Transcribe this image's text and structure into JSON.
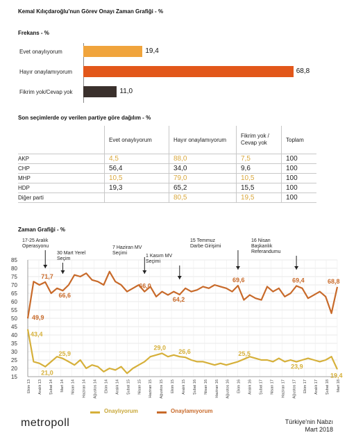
{
  "chart_data": [
    {
      "type": "bar",
      "title": "Kemal Kılıçdaroğlu'nun Görev Onayı Zaman Grafiği - %",
      "subtitle": "Frekans - %",
      "categories": [
        "Evet onaylıyorum",
        "Hayır onaylamıyorum",
        "Fikrim yok/Cevap yok"
      ],
      "values": [
        19.4,
        68.8,
        11.0
      ],
      "value_labels": [
        "19,4",
        "68,8",
        "11,0"
      ],
      "colors": [
        "#f0a43c",
        "#e2571a",
        "#3a302c"
      ],
      "xlim": [
        0,
        70
      ]
    },
    {
      "type": "table",
      "title": "Son seçimlerde oy verilen partiye göre dağılım - %",
      "columns": [
        "Evet onaylıyorum",
        "Hayır onaylamıyorum",
        "Fikrim yok / Cevap yok",
        "Toplam"
      ],
      "rows": [
        {
          "label": "AKP",
          "cells": [
            "4,5",
            "88,0",
            "7,5",
            "100"
          ]
        },
        {
          "label": "CHP",
          "cells": [
            "56,4",
            "34,0",
            "9,6",
            "100"
          ]
        },
        {
          "label": "MHP",
          "cells": [
            "10,5",
            "79,0",
            "10,5",
            "100"
          ]
        },
        {
          "label": "HDP",
          "cells": [
            "19,3",
            "65,2",
            "15,5",
            "100"
          ]
        },
        {
          "label": "Diğer parti",
          "cells": [
            "",
            "80,5",
            "19,5",
            "100"
          ]
        }
      ]
    },
    {
      "type": "line",
      "title": "Zaman Grafiği - %",
      "ylim": [
        15,
        85
      ],
      "yticks": [
        15,
        20,
        25,
        30,
        35,
        40,
        45,
        50,
        55,
        60,
        65,
        70,
        75,
        80,
        85
      ],
      "grid": true,
      "legend_position": "bottom",
      "x": [
        "Eki.13",
        "Kas.13",
        "Ara.13",
        "Oca.14",
        "Şub.14",
        "Mar.14",
        "Nis.14",
        "May.14",
        "Haz.14",
        "Tem.14",
        "Ağu.14",
        "Eyl.14",
        "Eki.14",
        "Kas.14",
        "Ara.14",
        "Oca.15",
        "Şub.15",
        "Mar.15",
        "Nis.15",
        "May.15",
        "Haz.15",
        "Tem.15",
        "Ağu.15",
        "Eyl.15",
        "Eki.15",
        "Kas.15",
        "Ara.15",
        "Oca.16",
        "Şub.16",
        "Mar.16",
        "Nis.16",
        "May.16",
        "Haz.16",
        "Tem.16",
        "Ağu.16",
        "Eyl.16",
        "Eki.16",
        "Kas.16",
        "Ara.16",
        "Oca.17",
        "Şub.17",
        "Mar.17",
        "Nis.17",
        "May.17",
        "Haz.17",
        "Tem.17",
        "Ağu.17",
        "Eyl.17",
        "Eki.17",
        "Kas.17",
        "Ara.17",
        "Oca.18",
        "Şub.18",
        "Mar.18"
      ],
      "xtick_labels": [
        "Ekim 13",
        "Aralık 13",
        "Şubat 14",
        "Mart 14",
        "Nisan 14",
        "Haziran 14",
        "Ağustos 14",
        "Ekim 14",
        "Aralık 14",
        "Şubat 15",
        "Nisan 15",
        "Haziran 15",
        "Ağustos 15",
        "Ekim 15",
        "Aralık 15",
        "Şubat 16",
        "Nisan 16",
        "Haziran 16",
        "Ağustos 16",
        "Ekim 16",
        "Aralık 16",
        "Şubat 17",
        "Nisan 17",
        "Haziran 17",
        "Ağustos 17",
        "Ekim 17",
        "Aralık 17",
        "Şubat 18",
        "Mart 18"
      ],
      "series": [
        {
          "name": "Onaylıyorum",
          "color": "#d6b03a",
          "values": [
            43.4,
            24,
            23,
            21.0,
            24,
            27,
            25.9,
            24,
            22,
            25,
            20,
            22,
            21,
            18,
            20,
            19,
            21,
            17,
            20,
            22,
            24,
            27,
            28,
            29.0,
            27,
            28,
            27,
            26.6,
            25,
            24,
            24,
            23,
            22,
            23,
            22,
            23,
            24,
            25.5,
            27,
            26,
            25,
            25,
            24,
            26,
            24,
            25,
            23.9,
            25,
            26,
            25,
            24,
            25,
            27,
            19.4
          ]
        },
        {
          "name": "Onaylamıyorum",
          "color": "#c86a2a",
          "values": [
            49.9,
            72,
            70,
            71.7,
            65,
            68,
            66.6,
            70,
            76,
            75,
            77,
            73,
            72,
            70,
            78,
            72,
            70,
            66,
            68,
            70,
            66.0,
            69,
            63,
            66,
            64,
            66,
            64.2,
            68,
            66,
            67,
            69,
            68,
            70,
            69,
            68,
            66,
            69.6,
            61,
            64,
            62,
            61,
            69,
            66,
            68,
            63,
            65,
            69.4,
            68,
            62,
            64,
            66,
            63,
            53,
            68.8
          ]
        }
      ],
      "value_labels": [
        {
          "series": 1,
          "label": "49,9"
        },
        {
          "series": 0,
          "label": "43,4"
        },
        {
          "series": 1,
          "label": "71,7"
        },
        {
          "series": 0,
          "label": "21,0"
        },
        {
          "series": 1,
          "label": "66,6"
        },
        {
          "series": 0,
          "label": "25,9"
        },
        {
          "series": 1,
          "label": "66,0"
        },
        {
          "series": 0,
          "label": "29,0"
        },
        {
          "series": 1,
          "label": "64,2"
        },
        {
          "series": 0,
          "label": "26,6"
        },
        {
          "series": 1,
          "label": "69,6"
        },
        {
          "series": 0,
          "label": "25,5"
        },
        {
          "series": 1,
          "label": "69,4"
        },
        {
          "series": 0,
          "label": "23,9"
        },
        {
          "series": 1,
          "label": "68,8"
        },
        {
          "series": 0,
          "label": "19,4"
        }
      ],
      "annotations": [
        {
          "text": "17-25 Aralık Operasyonu"
        },
        {
          "text": "30 Mart Yerel Seçim"
        },
        {
          "text": "7 Haziran MV Seçimi"
        },
        {
          "text": "1 Kasım MV Seçimi"
        },
        {
          "text": "15 Temmuz Darbe Girişimi"
        },
        {
          "text": "16 Nisan Başkanlık Referandumu"
        }
      ]
    }
  ],
  "footer": {
    "logo_text": "metropoll",
    "source_line1": "Türkiye'nin Nabzı",
    "source_line2": "Mart 2018"
  }
}
